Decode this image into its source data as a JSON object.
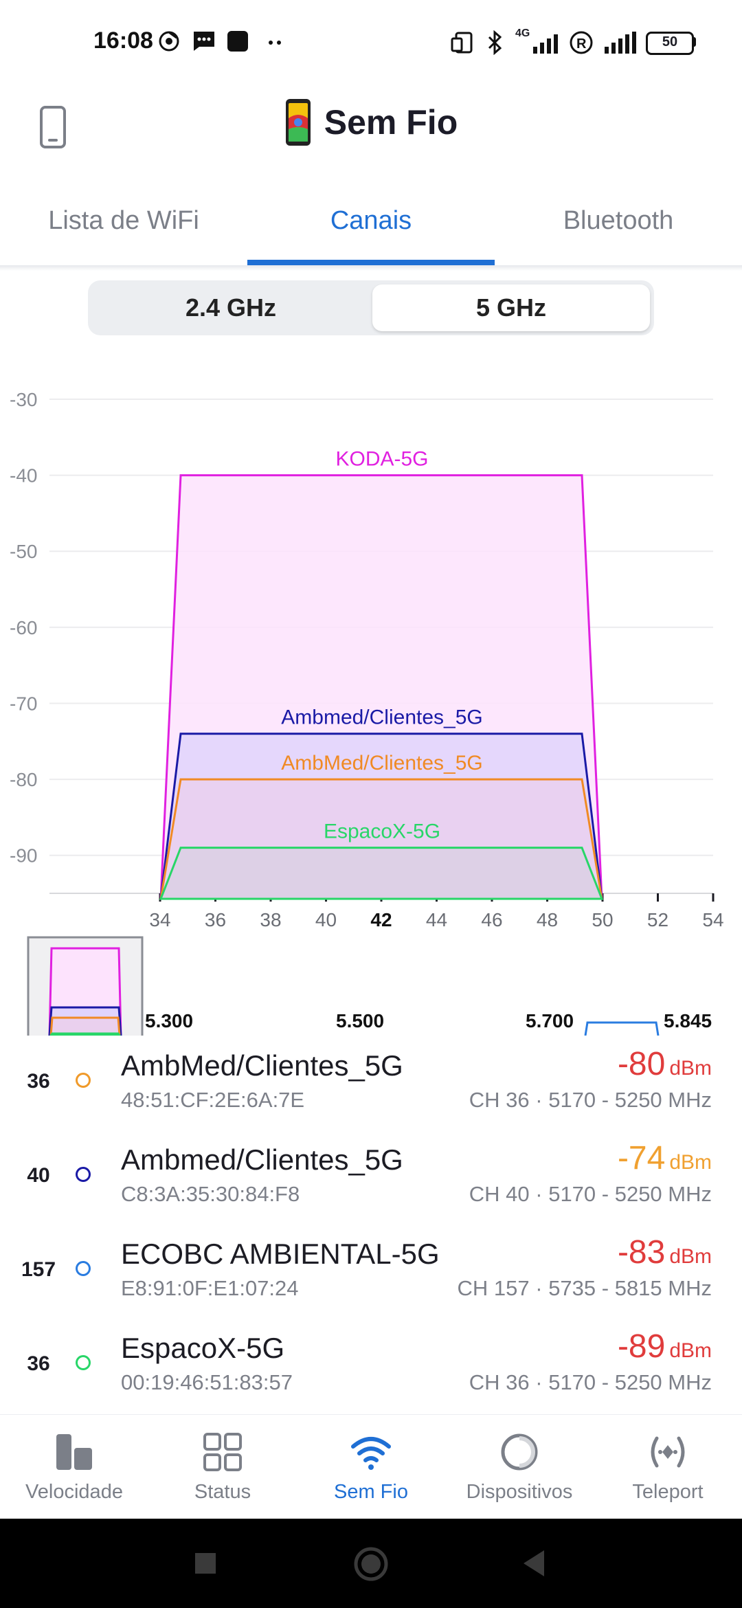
{
  "status_bar": {
    "time": "16:08",
    "network_type": "4G",
    "battery": "50",
    "icons": [
      "chrome-icon",
      "message-icon",
      "app-icon",
      "more-dots-icon",
      "nfc-icon",
      "bluetooth-icon",
      "signal-4g-icon",
      "roaming-r-icon",
      "signal-icon",
      "battery-icon"
    ]
  },
  "header": {
    "title": "Sem Fio",
    "left_icon": "phone-icon"
  },
  "tabs": [
    {
      "label": "Lista de WiFi",
      "active": false
    },
    {
      "label": "Canais",
      "active": true
    },
    {
      "label": "Bluetooth",
      "active": false
    }
  ],
  "band_selector": [
    {
      "label": "2.4 GHz",
      "active": false
    },
    {
      "label": "5 GHz",
      "active": true
    }
  ],
  "chart_data": {
    "type": "area",
    "xlabel": "",
    "ylabel": "",
    "y_ticks": [
      "-30",
      "-40",
      "-50",
      "-60",
      "-70",
      "-80",
      "-90"
    ],
    "x_ticks": [
      "34",
      "36",
      "38",
      "40",
      "42",
      "44",
      "46",
      "48",
      "50",
      "52",
      "54"
    ],
    "highlight_tick": "42",
    "xlim": [
      34,
      54
    ],
    "ylim": [
      -95,
      -30
    ],
    "grid": true,
    "series": [
      {
        "name": "KODA-5G",
        "channel_start": 34,
        "channel_end": 50,
        "value": -40,
        "color": "#e020e0",
        "fill": "#fde3fd"
      },
      {
        "name": "Ambmed/Clientes_5G",
        "channel_start": 34,
        "channel_end": 50,
        "value": -74,
        "color": "#1a1aa6",
        "fill": "#e0d4fc"
      },
      {
        "name": "AmbMed/Clientes_5G",
        "channel_start": 34,
        "channel_end": 50,
        "value": -80,
        "color": "#f08a24",
        "fill": "#ead0ee"
      },
      {
        "name": "EspacoX-5G",
        "channel_start": 34,
        "channel_end": 50,
        "value": -89,
        "color": "#28d668",
        "fill": "#dbd0e4"
      }
    ]
  },
  "minimap": {
    "labels": [
      "5.300",
      "5.500",
      "5.700",
      "5.845"
    ]
  },
  "networks": [
    {
      "channel": "36",
      "ssid": "AmbMed/Clientes_5G",
      "mac": "48:51:CF:2E:6A:7E",
      "dbm": "-80",
      "unit": "dBm",
      "dbm_color": "#e03c3c",
      "ch_info": "CH 36 · 5170 - 5250 MHz",
      "dot_color": "#f09a2a"
    },
    {
      "channel": "40",
      "ssid": "Ambmed/Clientes_5G",
      "mac": "C8:3A:35:30:84:F8",
      "dbm": "-74",
      "unit": "dBm",
      "dbm_color": "#f0a030",
      "ch_info": "CH 40 · 5170 - 5250 MHz",
      "dot_color": "#1a1aa6"
    },
    {
      "channel": "157",
      "ssid": "ECOBC AMBIENTAL-5G",
      "mac": "E8:91:0F:E1:07:24",
      "dbm": "-83",
      "unit": "dBm",
      "dbm_color": "#e03c3c",
      "ch_info": "CH 157 · 5735 - 5815 MHz",
      "dot_color": "#2a7ce0"
    },
    {
      "channel": "36",
      "ssid": "EspacoX-5G",
      "mac": "00:19:46:51:83:57",
      "dbm": "-89",
      "unit": "dBm",
      "dbm_color": "#e03c3c",
      "ch_info": "CH 36 · 5170 - 5250 MHz",
      "dot_color": "#28d668"
    }
  ],
  "bottom_nav": [
    {
      "label": "Velocidade",
      "icon": "speed-bars-icon",
      "active": false
    },
    {
      "label": "Status",
      "icon": "grid-icon",
      "active": false
    },
    {
      "label": "Sem Fio",
      "icon": "wifi-icon",
      "active": true
    },
    {
      "label": "Dispositivos",
      "icon": "devices-circle-icon",
      "active": false
    },
    {
      "label": "Teleport",
      "icon": "teleport-icon",
      "active": false
    }
  ]
}
